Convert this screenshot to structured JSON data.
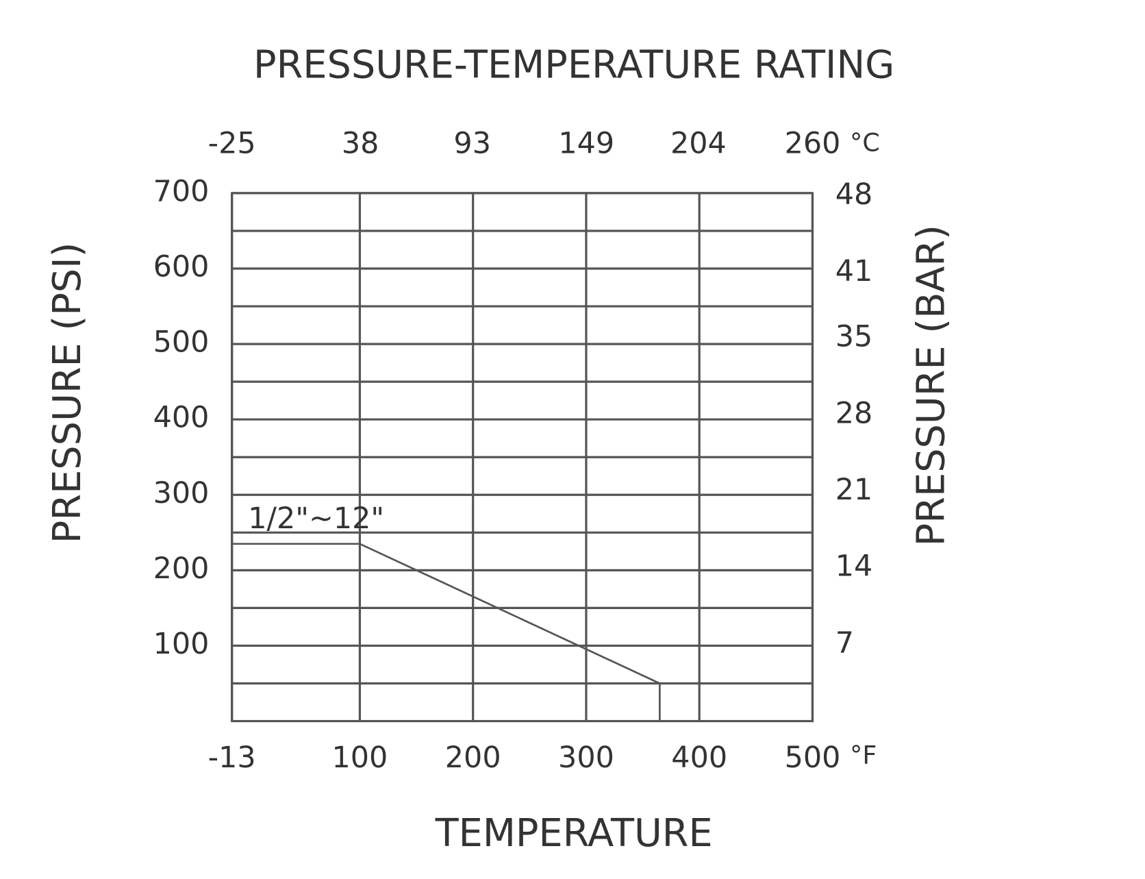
{
  "chart_data": {
    "type": "line",
    "title": "PRESSURE-TEMPERATURE RATING",
    "x_label": "TEMPERATURE",
    "y_label": "PRESSURE (PSI)",
    "y2_label": "PRESSURE (BAR)",
    "x_unit": "°F",
    "x2_unit": "°C",
    "xlim": [
      -13,
      500
    ],
    "xticks": [
      -13,
      100,
      200,
      300,
      400,
      500
    ],
    "x2lim": [
      -25,
      260
    ],
    "x2ticks": [
      -25,
      38,
      93,
      149,
      204,
      260
    ],
    "ylim": [
      0,
      700
    ],
    "yticks": [
      100,
      200,
      300,
      400,
      500,
      600,
      700
    ],
    "y_minor_ticks": [
      50,
      150,
      250,
      350,
      450,
      550,
      650
    ],
    "y2lim": [
      0,
      48.3
    ],
    "y2ticks": [
      7,
      14,
      21,
      28,
      35,
      41,
      48
    ],
    "grid": true,
    "series": [
      {
        "name": "1/2\"~12\"",
        "color": "#555555",
        "x": [
          -13,
          100,
          365,
          365
        ],
        "values": [
          235,
          235,
          50,
          0
        ]
      }
    ]
  }
}
